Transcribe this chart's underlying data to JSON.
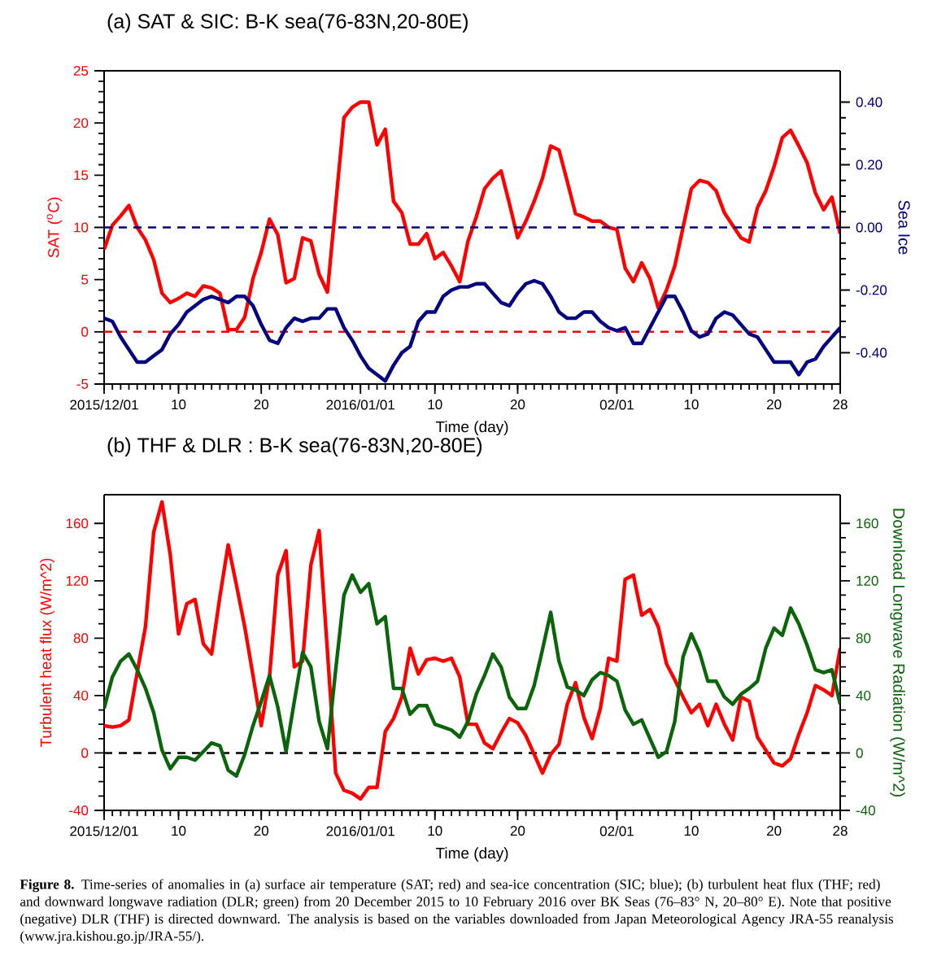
{
  "chart_data": [
    {
      "type": "line",
      "title": "(a) SAT & SIC: B-K sea(76-83N,20-80E)",
      "xlabel": "Time (day)",
      "ylabel": "SAT ($^{o}$C)",
      "y2label": "Sea Ice",
      "x": [
        "2015-12-01",
        "2015-12-02",
        "2015-12-03",
        "2015-12-04",
        "2015-12-05",
        "2015-12-06",
        "2015-12-07",
        "2015-12-08",
        "2015-12-09",
        "2015-12-10",
        "2015-12-11",
        "2015-12-12",
        "2015-12-13",
        "2015-12-14",
        "2015-12-15",
        "2015-12-16",
        "2015-12-17",
        "2015-12-18",
        "2015-12-19",
        "2015-12-20",
        "2015-12-21",
        "2015-12-22",
        "2015-12-23",
        "2015-12-24",
        "2015-12-25",
        "2015-12-26",
        "2015-12-27",
        "2015-12-28",
        "2015-12-29",
        "2015-12-30",
        "2015-12-31",
        "2016-01-01",
        "2016-01-02",
        "2016-01-03",
        "2016-01-04",
        "2016-01-05",
        "2016-01-06",
        "2016-01-07",
        "2016-01-08",
        "2016-01-09",
        "2016-01-10",
        "2016-01-11",
        "2016-01-12",
        "2016-01-13",
        "2016-01-14",
        "2016-01-15",
        "2016-01-16",
        "2016-01-17",
        "2016-01-18",
        "2016-01-19",
        "2016-01-20",
        "2016-01-21",
        "2016-01-22",
        "2016-01-23",
        "2016-01-24",
        "2016-01-25",
        "2016-01-26",
        "2016-01-27",
        "2016-01-28",
        "2016-01-29",
        "2016-01-30",
        "2016-01-31",
        "2016-02-01",
        "2016-02-02",
        "2016-02-03",
        "2016-02-04",
        "2016-02-05",
        "2016-02-06",
        "2016-02-07",
        "2016-02-08",
        "2016-02-09",
        "2016-02-10",
        "2016-02-11",
        "2016-02-12",
        "2016-02-13",
        "2016-02-14",
        "2016-02-15",
        "2016-02-16",
        "2016-02-17",
        "2016-02-18",
        "2016-02-19",
        "2016-02-20",
        "2016-02-21",
        "2016-02-22",
        "2016-02-23",
        "2016-02-24",
        "2016-02-25",
        "2016-02-26",
        "2016-02-27",
        "2016-02-28"
      ],
      "xlim": [
        "2015-12-01",
        "2016-02-28"
      ],
      "xticks": [
        {
          "value": "2015-12-01",
          "label": "2015/12/01"
        },
        {
          "value": "2015-12-10",
          "label": "10"
        },
        {
          "value": "2015-12-20",
          "label": "20"
        },
        {
          "value": "2016-01-01",
          "label": "2016/01/01"
        },
        {
          "value": "2016-01-10",
          "label": "10"
        },
        {
          "value": "2016-01-20",
          "label": "20"
        },
        {
          "value": "2016-02-01",
          "label": "02/01"
        },
        {
          "value": "2016-02-10",
          "label": "10"
        },
        {
          "value": "2016-02-20",
          "label": "20"
        },
        {
          "value": "2016-02-28",
          "label": "28"
        }
      ],
      "ylim": [
        -5,
        25
      ],
      "yticks": [
        -5,
        0,
        5,
        10,
        15,
        20,
        25
      ],
      "y2lim": [
        -0.5,
        0.5
      ],
      "y2ticks": [
        {
          "value": -0.4,
          "label": "-0.40"
        },
        {
          "value": -0.2,
          "label": "-0.20"
        },
        {
          "value": 0,
          "label": "0.00"
        },
        {
          "value": 0.2,
          "label": "0.20"
        },
        {
          "value": 0.4,
          "label": "0.40"
        }
      ],
      "series": [
        {
          "color": "#ff0000",
          "values": [
            7.9,
            10.2,
            11.1,
            12.1,
            10.0,
            8.8,
            6.9,
            3.7,
            2.8,
            3.2,
            3.7,
            3.4,
            4.4,
            4.2,
            3.7,
            0.2,
            0.2,
            1.4,
            5.1,
            7.6,
            10.8,
            9.3,
            4.7,
            5.1,
            9.0,
            8.7,
            5.5,
            3.8,
            12.2,
            20.5,
            21.5,
            22.0,
            22.0,
            17.9,
            19.4,
            12.5,
            11.4,
            8.4,
            8.4,
            9.4,
            7.0,
            7.6,
            6.3,
            4.8,
            8.7,
            11.0,
            13.7,
            14.7,
            15.4,
            12.3,
            9.0,
            10.6,
            12.5,
            14.7,
            17.8,
            17.4,
            14.4,
            11.3,
            11.0,
            10.6,
            10.6,
            10.0,
            9.8,
            6.1,
            4.8,
            6.6,
            5.1,
            2.3,
            4.0,
            6.3,
            10.0,
            13.7,
            14.5,
            14.3,
            13.5,
            11.4,
            10.2,
            9.0,
            8.6,
            11.9,
            13.5,
            15.8,
            18.6,
            19.3,
            17.8,
            16.2,
            13.3,
            11.7,
            12.9,
            9.4
          ]
        },
        {
          "color": "#000080",
          "axis": "y2",
          "values": [
            -0.29,
            -0.3,
            -0.35,
            -0.39,
            -0.43,
            -0.43,
            -0.41,
            -0.39,
            -0.34,
            -0.31,
            -0.27,
            -0.25,
            -0.23,
            -0.22,
            -0.23,
            -0.24,
            -0.22,
            -0.22,
            -0.25,
            -0.31,
            -0.36,
            -0.37,
            -0.32,
            -0.29,
            -0.3,
            -0.29,
            -0.29,
            -0.26,
            -0.26,
            -0.32,
            -0.36,
            -0.41,
            -0.45,
            -0.47,
            -0.49,
            -0.44,
            -0.4,
            -0.38,
            -0.3,
            -0.27,
            -0.27,
            -0.22,
            -0.2,
            -0.19,
            -0.19,
            -0.18,
            -0.18,
            -0.21,
            -0.24,
            -0.25,
            -0.21,
            -0.18,
            -0.17,
            -0.18,
            -0.22,
            -0.27,
            -0.29,
            -0.29,
            -0.27,
            -0.27,
            -0.3,
            -0.32,
            -0.33,
            -0.32,
            -0.37,
            -0.37,
            -0.32,
            -0.27,
            -0.22,
            -0.22,
            -0.27,
            -0.33,
            -0.35,
            -0.34,
            -0.29,
            -0.27,
            -0.28,
            -0.31,
            -0.34,
            -0.35,
            -0.39,
            -0.43,
            -0.43,
            -0.43,
            -0.47,
            -0.43,
            -0.42,
            -0.38,
            -0.35,
            -0.32
          ]
        }
      ],
      "ref_lines": [
        {
          "axis": "y",
          "value": 0,
          "color": "#ff0000",
          "line_style": "dashed"
        },
        {
          "axis": "y2",
          "value": 0,
          "color": "#000080",
          "line_style": "dashed"
        }
      ]
    },
    {
      "type": "line",
      "title": "(b) THF & DLR : B-K sea(76-83N,20-80E)",
      "xlabel": "Time (day)",
      "ylabel": "Turbulent heat flux (W/m^2)",
      "y2label": "Download Longwave Radiation (W/m^2)",
      "x": [
        "2015-12-01",
        "2015-12-02",
        "2015-12-03",
        "2015-12-04",
        "2015-12-05",
        "2015-12-06",
        "2015-12-07",
        "2015-12-08",
        "2015-12-09",
        "2015-12-10",
        "2015-12-11",
        "2015-12-12",
        "2015-12-13",
        "2015-12-14",
        "2015-12-15",
        "2015-12-16",
        "2015-12-17",
        "2015-12-18",
        "2015-12-19",
        "2015-12-20",
        "2015-12-21",
        "2015-12-22",
        "2015-12-23",
        "2015-12-24",
        "2015-12-25",
        "2015-12-26",
        "2015-12-27",
        "2015-12-28",
        "2015-12-29",
        "2015-12-30",
        "2015-12-31",
        "2016-01-01",
        "2016-01-02",
        "2016-01-03",
        "2016-01-04",
        "2016-01-05",
        "2016-01-06",
        "2016-01-07",
        "2016-01-08",
        "2016-01-09",
        "2016-01-10",
        "2016-01-11",
        "2016-01-12",
        "2016-01-13",
        "2016-01-14",
        "2016-01-15",
        "2016-01-16",
        "2016-01-17",
        "2016-01-18",
        "2016-01-19",
        "2016-01-20",
        "2016-01-21",
        "2016-01-22",
        "2016-01-23",
        "2016-01-24",
        "2016-01-25",
        "2016-01-26",
        "2016-01-27",
        "2016-01-28",
        "2016-01-29",
        "2016-01-30",
        "2016-01-31",
        "2016-02-01",
        "2016-02-02",
        "2016-02-03",
        "2016-02-04",
        "2016-02-05",
        "2016-02-06",
        "2016-02-07",
        "2016-02-08",
        "2016-02-09",
        "2016-02-10",
        "2016-02-11",
        "2016-02-12",
        "2016-02-13",
        "2016-02-14",
        "2016-02-15",
        "2016-02-16",
        "2016-02-17",
        "2016-02-18",
        "2016-02-19",
        "2016-02-20",
        "2016-02-21",
        "2016-02-22",
        "2016-02-23",
        "2016-02-24",
        "2016-02-25",
        "2016-02-26",
        "2016-02-27",
        "2016-02-28"
      ],
      "xlim": [
        "2015-12-01",
        "2016-02-28"
      ],
      "xticks": [
        {
          "value": "2015-12-01",
          "label": "2015/12/01"
        },
        {
          "value": "2015-12-10",
          "label": "10"
        },
        {
          "value": "2015-12-20",
          "label": "20"
        },
        {
          "value": "2016-01-01",
          "label": "2016/01/01"
        },
        {
          "value": "2016-01-10",
          "label": "10"
        },
        {
          "value": "2016-01-20",
          "label": "20"
        },
        {
          "value": "2016-02-01",
          "label": "02/01"
        },
        {
          "value": "2016-02-10",
          "label": "10"
        },
        {
          "value": "2016-02-20",
          "label": "20"
        },
        {
          "value": "2016-02-28",
          "label": "28"
        }
      ],
      "ylim": [
        -40,
        180
      ],
      "yticks": [
        -40,
        0,
        40,
        80,
        120,
        160
      ],
      "y2lim": [
        -40,
        180
      ],
      "y2ticks": [
        -40,
        0,
        40,
        80,
        120,
        160
      ],
      "series": [
        {
          "color": "#ff0000",
          "values": [
            19,
            18,
            19,
            23,
            56,
            88,
            154,
            175,
            138,
            83,
            104,
            107,
            76,
            69,
            109,
            145,
            117,
            88,
            54,
            19,
            53,
            124,
            141,
            60,
            64,
            131,
            155,
            71,
            -14,
            -26,
            -28,
            -32,
            -24,
            -24,
            15,
            24,
            39,
            73,
            55,
            65,
            66,
            64,
            66,
            53,
            20,
            20,
            7,
            3,
            14,
            24,
            21,
            12,
            -1,
            -14,
            -1,
            6,
            34,
            49,
            25,
            10,
            31,
            66,
            64,
            121,
            124,
            96,
            100,
            88,
            62,
            51,
            39,
            28,
            34,
            19,
            34,
            20,
            9,
            39,
            36,
            11,
            2,
            -7,
            -9,
            -4,
            13,
            28,
            47,
            44,
            40,
            73
          ]
        },
        {
          "color": "#0a640a",
          "axis": "y2",
          "values": [
            31,
            53,
            64,
            69,
            58,
            45,
            28,
            2,
            -11,
            -3,
            -3,
            -5,
            1,
            7,
            5,
            -12,
            -16,
            -1,
            19,
            36,
            54,
            32,
            1,
            36,
            70,
            60,
            22,
            3,
            58,
            110,
            124,
            112,
            118,
            90,
            95,
            45,
            45,
            27,
            33,
            33,
            20,
            18,
            16,
            11,
            22,
            41,
            54,
            69,
            60,
            39,
            31,
            31,
            47,
            72,
            98,
            64,
            46,
            44,
            40,
            51,
            56,
            54,
            50,
            30,
            20,
            23,
            10,
            -3,
            1,
            22,
            67,
            83,
            70,
            50,
            50,
            39,
            34,
            41,
            45,
            50,
            73,
            87,
            82,
            101,
            90,
            75,
            58,
            56,
            58,
            34
          ]
        }
      ],
      "ref_lines": [
        {
          "axis": "y",
          "value": 0,
          "color": "#000000",
          "line_style": "dashed"
        }
      ],
      "annotations": [
        "**Figure 8.** Time-series of anomalies in (a) surface air temperature (SAT; red) and sea-ice concentration (SIC; blue); (b) turbulent heat flux (THF; red) and downward longwave radiation (DLR; green) from 20 December 2015 to 10 February 2016 over BK Seas (76–83° N, 20–80° E). Note that positive (negative) DLR (THF) is directed downward. The analysis is based on the variables downloaded from Japan Meteorological Agency JRA-55 reanalysis (www.jra.kishou.go.jp/JRA-55/)."
      ]
    }
  ]
}
